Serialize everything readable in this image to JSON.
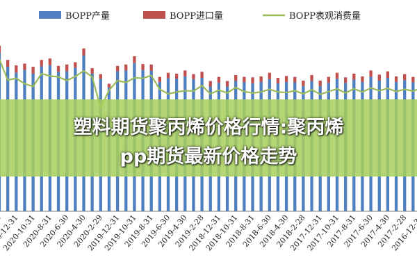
{
  "overlay": {
    "title_line_1": "塑料期货聚丙烯价格行情:聚丙烯",
    "title_line_2": "pp期货最新价格走势"
  },
  "chart_data": {
    "type": "bar",
    "title": "",
    "xlabel": "",
    "ylabel": "",
    "legend_position": "top",
    "grid": false,
    "categories": [
      "2021-4-30",
      "",
      "2020-12-31",
      "",
      "2020-10-31",
      "",
      "2020-8-31",
      "",
      "2020-6-30",
      "",
      "2020-4-30",
      "",
      "2020-2-29",
      "",
      "2019-12-31",
      "",
      "2019-10-31",
      "",
      "2019-8-31",
      "",
      "2019-6-30",
      "",
      "2019-4-30",
      "",
      "2019-2-28",
      "",
      "2018-12-31",
      "",
      "2018-10-31",
      "",
      "2018-8-31",
      "",
      "2018-6-30",
      "",
      "2018-4-30",
      "",
      "2018-2-28",
      "",
      "2017-12-31",
      "",
      "2017-10-31",
      "",
      "2017-8-31",
      "",
      "2017-6-30",
      "",
      "2017-4-30",
      "",
      "2017-2-28",
      "",
      "2016-12-31"
    ],
    "series": [
      {
        "name": "BOPP产量",
        "kind": "bar",
        "color": "#4e7fc0",
        "values": [
          34.5,
          31.5,
          30.2,
          30.8,
          30.0,
          31.6,
          31.8,
          30.4,
          30.5,
          31.3,
          34.0,
          30.0,
          28.9,
          27.0,
          30.5,
          30.7,
          32.3,
          30.8,
          30.6,
          28.2,
          29.0,
          28.9,
          29.4,
          28.8,
          29.1,
          27.2,
          28.0,
          27.2,
          28.4,
          28.1,
          27.9,
          28.2,
          28.8,
          27.9,
          28.2,
          28.1,
          27.3,
          28.4,
          27.3,
          28.0,
          28.9,
          28.0,
          28.7,
          28.2,
          29.3,
          28.5,
          29.1,
          28.2,
          28.6,
          28.1,
          30.1
        ]
      },
      {
        "name": "BOPP进口量",
        "kind": "bar",
        "color": "#c0504d",
        "values": [
          1.6,
          1.5,
          1.6,
          1.4,
          1.5,
          1.4,
          1.5,
          1.3,
          1.5,
          1.2,
          1.5,
          1.2,
          1.0,
          0.8,
          1.2,
          1.3,
          1.5,
          1.3,
          1.4,
          1.1,
          1.2,
          1.1,
          1.3,
          1.1,
          1.3,
          1.2,
          1.3,
          1.2,
          1.3,
          1.2,
          1.3,
          1.2,
          1.4,
          1.2,
          1.3,
          1.2,
          1.2,
          1.3,
          1.2,
          1.3,
          1.3,
          1.2,
          1.3,
          1.2,
          1.4,
          1.3,
          1.4,
          1.2,
          1.3,
          1.2,
          1.4
        ]
      },
      {
        "name": "BOPP表观消费量",
        "kind": "line",
        "color": "#9bbb59",
        "values": [
          33.2,
          28.6,
          29.0,
          27.8,
          27.2,
          30.0,
          29.5,
          29.3,
          28.5,
          29.4,
          30.6,
          29.3,
          22.5,
          26.4,
          28.5,
          28.1,
          29.1,
          29.0,
          29.6,
          26.6,
          25.6,
          26.0,
          26.3,
          26.2,
          27.4,
          25.6,
          26.4,
          25.8,
          27.0,
          26.1,
          25.8,
          26.0,
          26.6,
          26.0,
          25.9,
          26.3,
          25.6,
          26.5,
          25.5,
          26.1,
          26.7,
          25.8,
          26.7,
          26.0,
          26.9,
          26.3,
          26.8,
          26.1,
          26.6,
          26.2,
          26.9
        ]
      }
    ],
    "ylim": [
      0,
      40
    ]
  }
}
